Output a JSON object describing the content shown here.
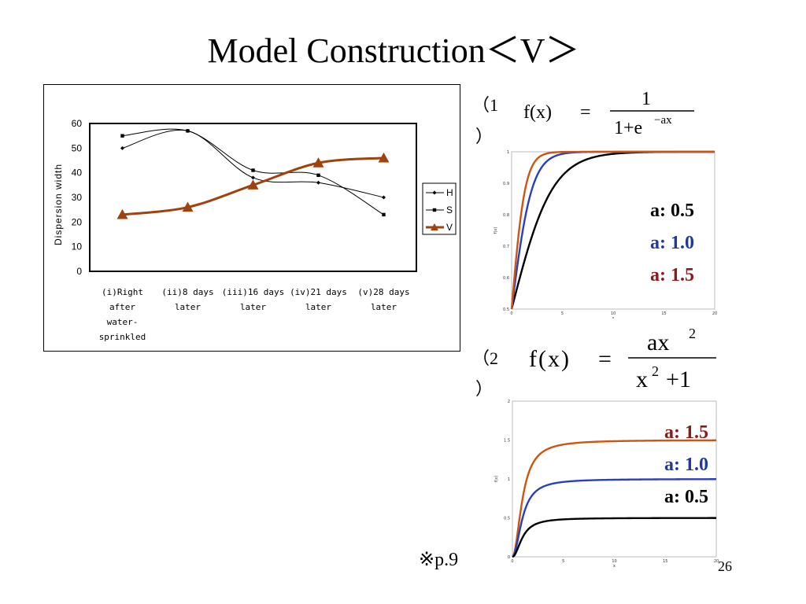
{
  "slide": {
    "title": "Model Construction＜V＞",
    "reference": "※p.9",
    "page_number": "26"
  },
  "main_chart": {
    "type": "line",
    "ylabel": "Dispersion width",
    "ylim": [
      0,
      60
    ],
    "yticks": [
      "0",
      "10",
      "20",
      "30",
      "40",
      "50",
      "60"
    ],
    "categories": [
      [
        "(i)Right",
        "after",
        "water-",
        "sprinkled"
      ],
      [
        "(ii)8 days",
        "later"
      ],
      [
        "(iii)16 days",
        "later"
      ],
      [
        "(iv)21 days",
        "later"
      ],
      [
        "(v)28 days",
        "later"
      ]
    ],
    "series": [
      {
        "name": "H",
        "marker": "diamond",
        "color": "#000000",
        "values": [
          50,
          57,
          38,
          36,
          30
        ]
      },
      {
        "name": "S",
        "marker": "square",
        "color": "#000000",
        "values": [
          55,
          57,
          41,
          39,
          23
        ]
      },
      {
        "name": "V",
        "marker": "triangle",
        "color": "#a0420e",
        "values": [
          23,
          26,
          35,
          44,
          46
        ]
      }
    ],
    "grid": true,
    "legend": "right"
  },
  "formula1": {
    "number": "（1",
    "close": "）",
    "lhs": "f(x)",
    "equals": "=",
    "numerator": "1",
    "denominator_base": "1+e",
    "denominator_exp": "−ax",
    "plot": {
      "type": "line",
      "xlim": [
        0,
        20
      ],
      "ylim": [
        0.5,
        1
      ],
      "xticks": [
        "0",
        "5",
        "10",
        "15",
        "20"
      ],
      "yticks": [
        "0.5",
        "0.6",
        "0.7",
        "0.8",
        "0.9",
        "1"
      ],
      "xlabel": "x",
      "ylabel": "f(x)",
      "series": [
        {
          "a": 0.5,
          "color": "#000000"
        },
        {
          "a": 1.0,
          "color": "#2a3fbf"
        },
        {
          "a": 1.5,
          "color": "#cc5512"
        }
      ],
      "labels": [
        {
          "text": "a: 0.5",
          "color": "#000000"
        },
        {
          "text": "a: 1.0",
          "color": "#1f3a9e"
        },
        {
          "text": "a: 1.5",
          "color": "#8b1a1a"
        }
      ]
    }
  },
  "formula2": {
    "number": "（2",
    "close": "）",
    "lhs": "f(x)",
    "equals": "=",
    "numerator": "ax",
    "numerator_exp": "2",
    "denominator": "x",
    "denominator_exp": "2",
    "denominator_rest": "+1",
    "plot": {
      "type": "line",
      "xlim": [
        0,
        20
      ],
      "ylim": [
        0,
        2
      ],
      "xticks": [
        "0",
        "5",
        "10",
        "15",
        "20"
      ],
      "yticks": [
        "0",
        "0.5",
        "1",
        "1.5",
        "2"
      ],
      "xlabel": "x",
      "ylabel": "f(x)",
      "series": [
        {
          "a": 1.5,
          "color": "#cc5512"
        },
        {
          "a": 1.0,
          "color": "#2a3fbf"
        },
        {
          "a": 0.5,
          "color": "#000000"
        }
      ],
      "labels": [
        {
          "text": "a: 1.5",
          "color": "#8b1a1a"
        },
        {
          "text": "a: 1.0",
          "color": "#1f3a9e"
        },
        {
          "text": "a: 0.5",
          "color": "#000000"
        }
      ]
    }
  }
}
